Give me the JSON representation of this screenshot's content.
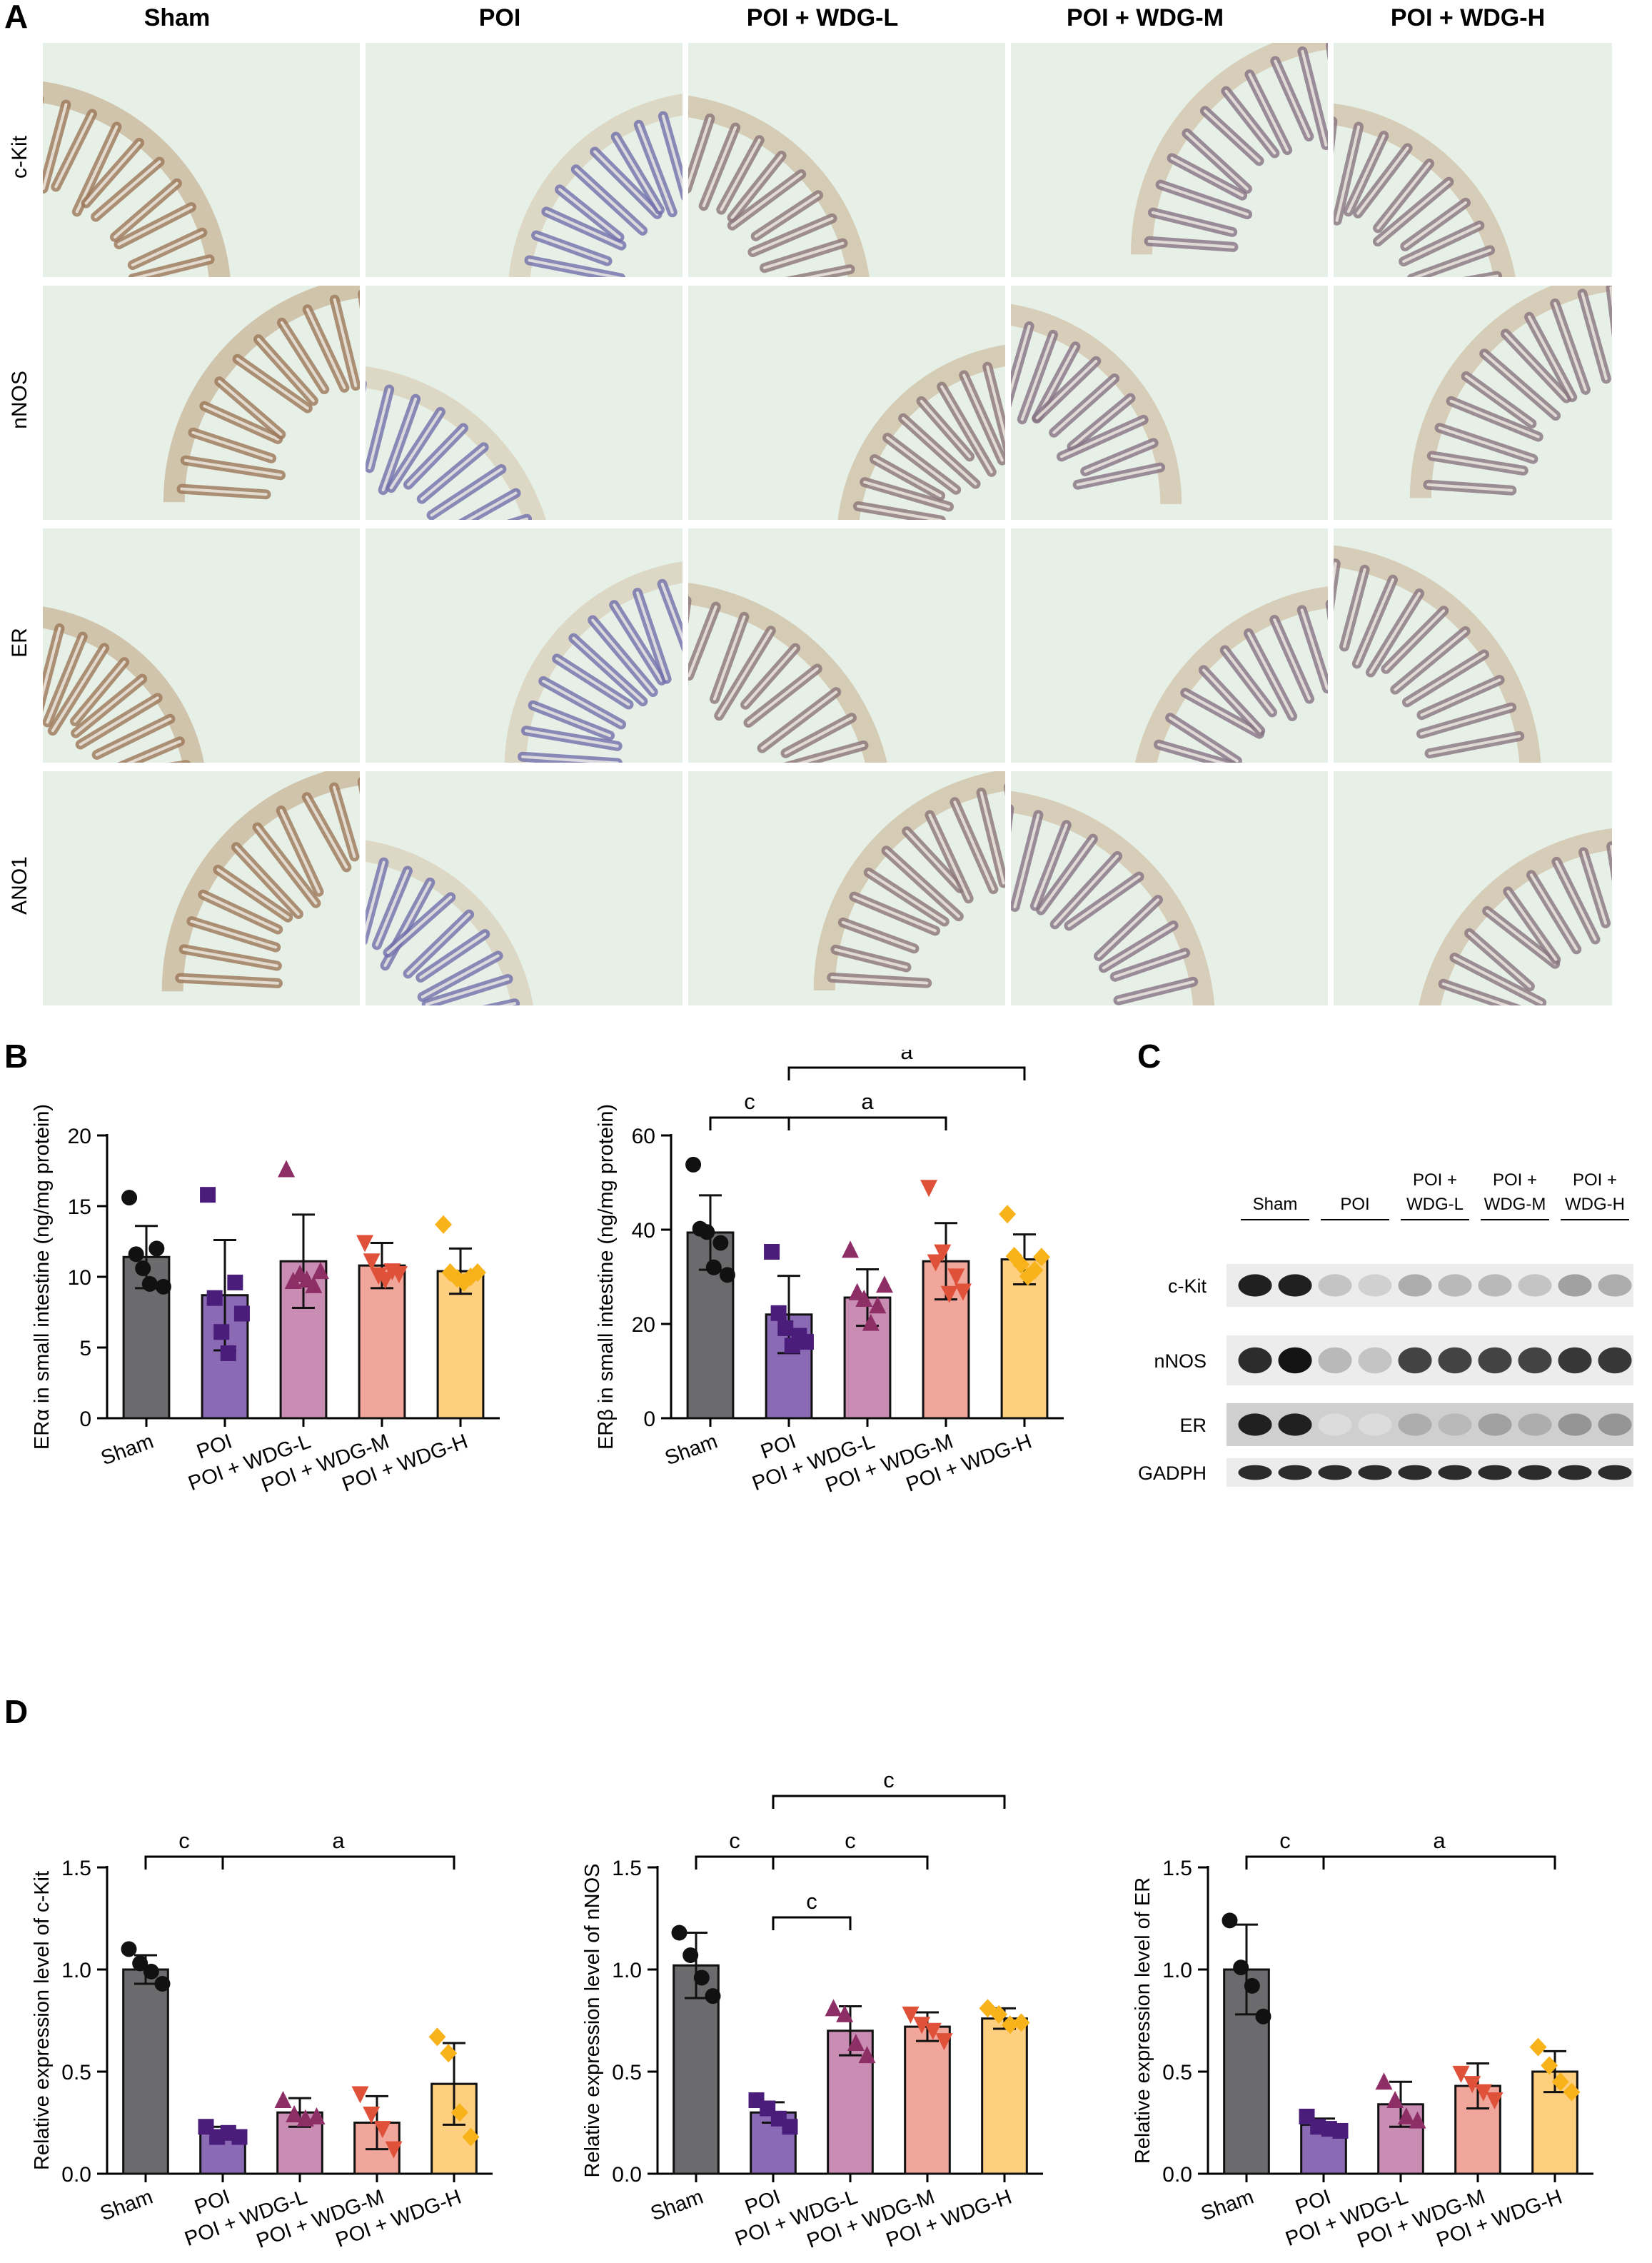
{
  "panel_labels": {
    "A": "A",
    "B": "B",
    "C": "C",
    "D": "D"
  },
  "ihc": {
    "columns": [
      "Sham",
      "POI",
      "POI + WDG-L",
      "POI + WDG-M",
      "POI + WDG-H"
    ],
    "rows": [
      "c-Kit",
      "nNOS",
      "ER",
      "ANO1"
    ]
  },
  "colors": {
    "sham": "#6b6b6d",
    "poi": "#8a6ab5",
    "wdg_l": "#c98db4",
    "wdg_m": "#f0a69a",
    "wdg_h": "#fdcf7e",
    "marker_sham": "#111111",
    "marker_poi": "#4a1d7a",
    "marker_wdg_l": "#8d2f66",
    "marker_wdg_m": "#e0513a",
    "marker_wdg_h": "#f8b21a",
    "tissue_purple": "#6d6fb5",
    "tissue_brown": "#a57a4a",
    "background_green": "#e6f0e6"
  },
  "chart_data": [
    {
      "type": "bar",
      "panel": "B",
      "ylabel": "ERα in small intestine (ng/mg protein)",
      "categories": [
        "Sham",
        "POI",
        "POI + WDG-L",
        "POI + WDG-M",
        "POI + WDG-H"
      ],
      "ylim": [
        0,
        20
      ],
      "yticks": [
        0,
        5,
        10,
        15,
        20
      ],
      "values": [
        11.4,
        8.7,
        11.1,
        10.8,
        10.4
      ],
      "errors": [
        2.2,
        3.9,
        3.3,
        1.6,
        1.6
      ],
      "points": [
        [
          15.6,
          11.6,
          10.6,
          9.5,
          12.0,
          9.3
        ],
        [
          15.8,
          8.5,
          6.1,
          4.6,
          9.6,
          7.4
        ],
        [
          17.6,
          9.7,
          10.2,
          9.8,
          9.4,
          10.4
        ],
        [
          12.4,
          11.1,
          10.1,
          9.8,
          10.4,
          10.2
        ],
        [
          13.7,
          10.3,
          9.9,
          9.6,
          10.0,
          10.3
        ]
      ],
      "brackets": []
    },
    {
      "type": "bar",
      "panel": "B",
      "ylabel": "ERβ in small intestine (ng/mg protein)",
      "categories": [
        "Sham",
        "POI",
        "POI + WDG-L",
        "POI + WDG-M",
        "POI + WDG-H"
      ],
      "ylim": [
        0,
        60
      ],
      "yticks": [
        0,
        20,
        40,
        60
      ],
      "values": [
        39.4,
        22.0,
        25.6,
        33.3,
        33.7
      ],
      "errors": [
        7.9,
        8.2,
        6.0,
        8.1,
        5.3
      ],
      "points": [
        [
          53.8,
          40.2,
          39.5,
          32.0,
          37.2,
          30.4
        ],
        [
          35.3,
          22.3,
          19.1,
          15.4,
          17.5,
          16.2
        ],
        [
          35.7,
          26.7,
          25.3,
          20.2,
          23.9,
          28.3
        ],
        [
          48.9,
          33.1,
          35.2,
          26.4,
          30.1,
          26.9
        ],
        [
          43.3,
          34.4,
          32.6,
          30.1,
          31.4,
          34.2
        ]
      ],
      "brackets": [
        {
          "from": 0,
          "to": 1,
          "label": "c",
          "level": 0
        },
        {
          "from": 1,
          "to": 3,
          "label": "a",
          "level": 0
        },
        {
          "from": 1,
          "to": 4,
          "label": "a",
          "level": 1
        }
      ]
    },
    {
      "type": "bar",
      "panel": "D",
      "ylabel": "Relative expression level of c-Kit",
      "categories": [
        "Sham",
        "POI",
        "POI + WDG-L",
        "POI + WDG-M",
        "POI + WDG-H"
      ],
      "ylim": [
        0,
        1.5
      ],
      "yticks": [
        0,
        0.5,
        1.0,
        1.5
      ],
      "values": [
        1.0,
        0.2,
        0.3,
        0.25,
        0.44
      ],
      "errors": [
        0.07,
        0.03,
        0.07,
        0.13,
        0.2
      ],
      "points": [
        [
          1.1,
          1.03,
          0.99,
          0.93
        ],
        [
          0.23,
          0.18,
          0.2,
          0.18
        ],
        [
          0.36,
          0.29,
          0.27,
          0.28
        ],
        [
          0.39,
          0.29,
          0.22,
          0.12
        ],
        [
          0.67,
          0.59,
          0.3,
          0.18
        ]
      ],
      "brackets": [
        {
          "from": 0,
          "to": 1,
          "label": "c",
          "level": 0
        },
        {
          "from": 1,
          "to": 4,
          "label": "a",
          "level": 0
        }
      ]
    },
    {
      "type": "bar",
      "panel": "D",
      "ylabel": "Relative expression level of nNOS",
      "categories": [
        "Sham",
        "POI",
        "POI + WDG-L",
        "POI + WDG-M",
        "POI + WDG-H"
      ],
      "ylim": [
        0,
        1.5
      ],
      "yticks": [
        0,
        0.5,
        1.0,
        1.5
      ],
      "values": [
        1.02,
        0.3,
        0.7,
        0.72,
        0.76
      ],
      "errors": [
        0.16,
        0.05,
        0.12,
        0.07,
        0.05
      ],
      "points": [
        [
          1.18,
          1.07,
          0.96,
          0.87
        ],
        [
          0.36,
          0.32,
          0.27,
          0.23
        ],
        [
          0.81,
          0.78,
          0.64,
          0.58
        ],
        [
          0.78,
          0.73,
          0.7,
          0.65
        ],
        [
          0.81,
          0.78,
          0.73,
          0.74
        ]
      ],
      "brackets": [
        {
          "from": 0,
          "to": 1,
          "label": "c",
          "level": 0
        },
        {
          "from": 1,
          "to": 2,
          "label": "c",
          "level": -1
        },
        {
          "from": 1,
          "to": 3,
          "label": "c",
          "level": 0
        },
        {
          "from": 1,
          "to": 4,
          "label": "c",
          "level": 1
        }
      ]
    },
    {
      "type": "bar",
      "panel": "D",
      "ylabel": "Relative expression level of ER",
      "categories": [
        "Sham",
        "POI",
        "POI + WDG-L",
        "POI + WDG-M",
        "POI + WDG-H"
      ],
      "ylim": [
        0,
        1.5
      ],
      "yticks": [
        0,
        0.5,
        1.0,
        1.5
      ],
      "values": [
        1.0,
        0.24,
        0.34,
        0.43,
        0.5
      ],
      "errors": [
        0.22,
        0.03,
        0.11,
        0.11,
        0.1
      ],
      "points": [
        [
          1.24,
          1.01,
          0.92,
          0.77
        ],
        [
          0.28,
          0.23,
          0.22,
          0.21
        ],
        [
          0.45,
          0.36,
          0.28,
          0.26
        ],
        [
          0.49,
          0.44,
          0.4,
          0.36
        ],
        [
          0.62,
          0.53,
          0.45,
          0.4
        ]
      ],
      "brackets": [
        {
          "from": 0,
          "to": 1,
          "label": "c",
          "level": 0
        },
        {
          "from": 1,
          "to": 4,
          "label": "a",
          "level": 0
        }
      ]
    }
  ],
  "blot": {
    "groups": [
      "Sham",
      "POI",
      "POI +\nWDG-L",
      "POI +\nWDG-M",
      "POI +\nWDG-H"
    ],
    "rows": [
      "c-Kit",
      "nNOS",
      "ER",
      "GADPH"
    ],
    "intensities": [
      [
        0.95,
        0.95,
        0.25,
        0.2,
        0.35,
        0.3,
        0.3,
        0.25,
        0.4,
        0.35
      ],
      [
        0.9,
        1.0,
        0.3,
        0.25,
        0.8,
        0.8,
        0.8,
        0.8,
        0.85,
        0.85
      ],
      [
        0.95,
        0.95,
        0.15,
        0.15,
        0.35,
        0.3,
        0.4,
        0.35,
        0.45,
        0.45
      ],
      [
        0.9,
        0.9,
        0.9,
        0.9,
        0.9,
        0.9,
        0.9,
        0.9,
        0.9,
        0.9
      ]
    ]
  }
}
